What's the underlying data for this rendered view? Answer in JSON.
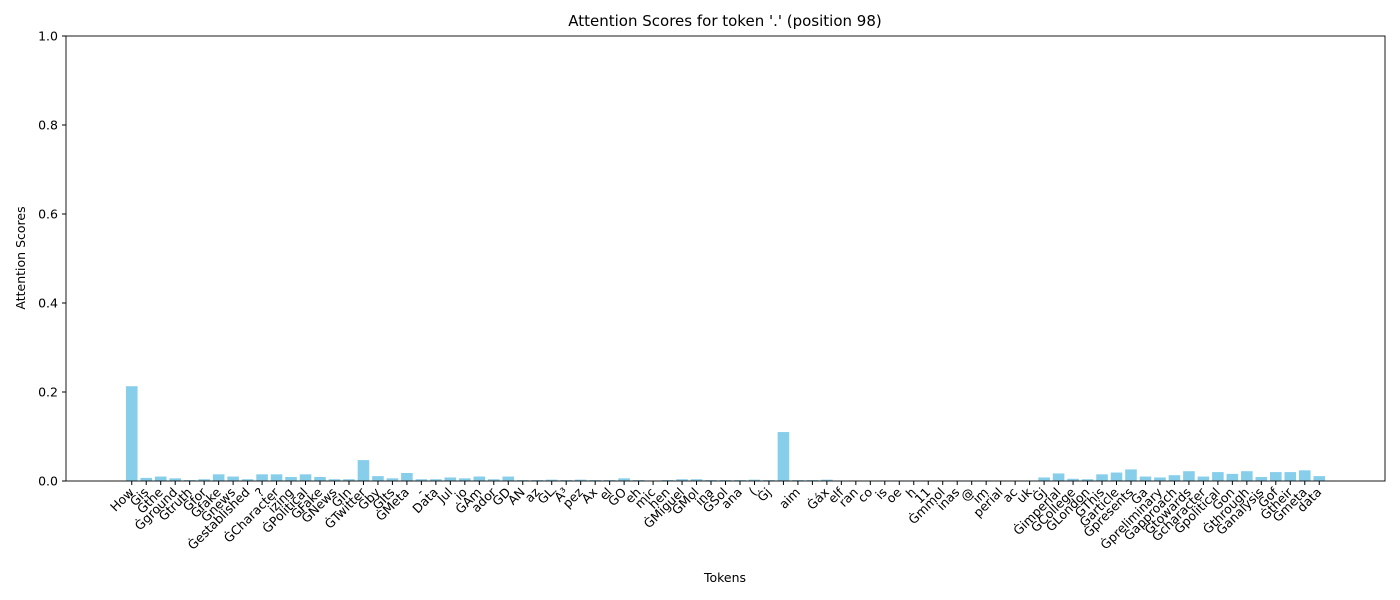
{
  "chart_data": {
    "type": "bar",
    "title": "Attention Scores for token '.' (position 98)",
    "x_label": "Tokens",
    "y_label": "Attention Scores",
    "color": "#87ceeb",
    "categories": [
      "How",
      "Ġis",
      "Ġthe",
      "Ġground",
      "Ġtruth",
      "Ġfor",
      "Ġfake",
      "Ġnews",
      "Ġestablished",
      "?",
      "ĠCharacter",
      "izing",
      "ĠPolitical",
      "ĠFake",
      "ĠNews",
      "ĠIn",
      "ĠTwitter",
      "Ġby",
      "ĠIts",
      "ĠMeta",
      "-",
      "Data",
      "Jul",
      "io",
      "ĠAm",
      "ador",
      "ĠD",
      "AN",
      "az",
      "ĠL",
      "Ã³",
      "pez",
      "Ax",
      "el",
      "ĠO",
      "eh",
      "mic",
      "hen",
      "ĠMiguel",
      "ĠMol",
      "ina",
      "ĠSol",
      "ana",
      "(",
      "Ġj",
      null,
      "aim",
      null,
      "Ġáx",
      "elf",
      "ran",
      "co",
      "is",
      "oe",
      "h",
      "11",
      "Ġmmol",
      "inas",
      "@",
      "im",
      "perial",
      "ac",
      "uk",
      "Ġj",
      "Ġimperial",
      "ĠCollege",
      "ĠLondon",
      "ĠThis",
      "Ġarticle",
      "Ġpresents",
      "Ġa",
      "Ġpreliminary",
      "Ġapproach",
      "Ġtowards",
      "Ġcharacter",
      "Ġpolitical",
      "Ġon",
      "Ġthrough",
      "Ġanalysis",
      "Ġof",
      "Ġtheir",
      "Ġmeta",
      "data"
    ],
    "values": [
      0.213,
      0.007,
      0.01,
      0.006,
      0.002,
      0.004,
      0.015,
      0.01,
      0.004,
      0.015,
      0.015,
      0.009,
      0.015,
      0.009,
      0.004,
      0.004,
      0.047,
      0.011,
      0.006,
      0.018,
      0.004,
      0.004,
      0.008,
      0.006,
      0.01,
      0.004,
      0.01,
      0.002,
      0.002,
      0.003,
      0.002,
      0.003,
      0.002,
      0.002,
      0.006,
      0.002,
      0.001,
      0.002,
      0.004,
      0.004,
      0.002,
      0.002,
      0.002,
      0.003,
      0.002,
      0.11,
      0.002,
      0.002,
      0.003,
      0.001,
      0.001,
      0.001,
      0.001,
      0.001,
      0.001,
      0.001,
      0.001,
      0.001,
      0.001,
      0.001,
      0.001,
      0.001,
      0.001,
      0.008,
      0.017,
      0.005,
      0.004,
      0.015,
      0.019,
      0.026,
      0.01,
      0.008,
      0.013,
      0.022,
      0.01,
      0.02,
      0.016,
      0.022,
      0.009,
      0.02,
      0.02,
      0.024,
      0.011
    ],
    "ylim": [
      0,
      1
    ],
    "yticks": [
      {
        "value": 0,
        "label": "0.0"
      },
      0.2,
      0.4,
      0.6,
      0.8,
      {
        "value": 1,
        "label": "1.0"
      }
    ]
  }
}
